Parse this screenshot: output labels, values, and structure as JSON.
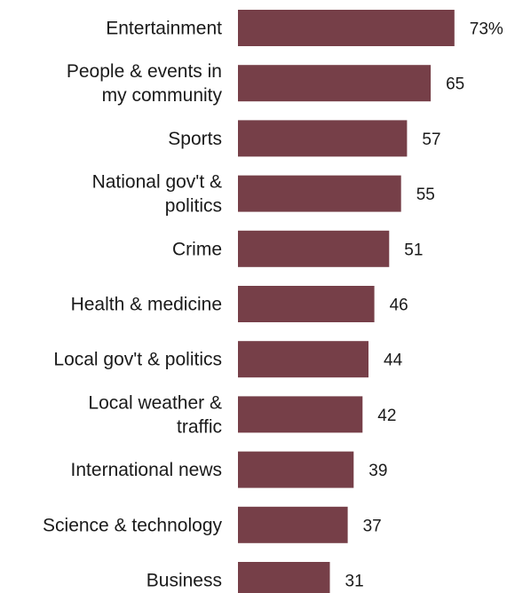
{
  "chart_data": {
    "type": "bar",
    "orientation": "horizontal",
    "title": "",
    "xlabel": "",
    "ylabel": "",
    "categories": [
      [
        "Entertainment"
      ],
      [
        "People & events in",
        "my community"
      ],
      [
        "Sports"
      ],
      [
        "National gov't &",
        "politics"
      ],
      [
        "Crime"
      ],
      [
        "Health & medicine"
      ],
      [
        "Local gov't & politics"
      ],
      [
        "Local weather &",
        "traffic"
      ],
      [
        "International news"
      ],
      [
        "Science & technology"
      ],
      [
        "Business"
      ]
    ],
    "values": [
      73,
      65,
      57,
      55,
      51,
      46,
      44,
      42,
      39,
      37,
      31
    ],
    "value_labels": [
      "73%",
      "65",
      "57",
      "55",
      "51",
      "46",
      "44",
      "42",
      "39",
      "37",
      "31"
    ],
    "xlim": [
      0,
      100
    ],
    "grid": false,
    "legend": "none",
    "bar_color": "#763F48",
    "text_color": "#1a1a1a"
  }
}
